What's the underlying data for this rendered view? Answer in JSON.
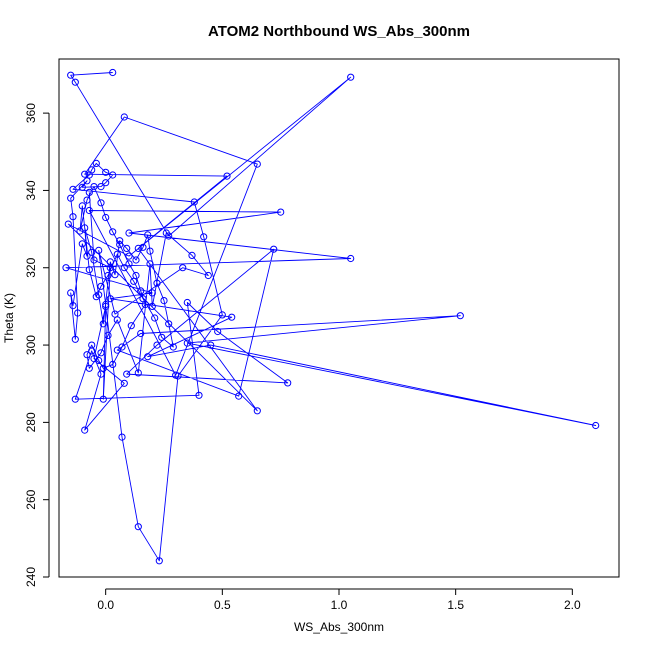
{
  "chart_data": {
    "type": "line",
    "title": "ATOM2 Northbound WS_Abs_300nm",
    "xlabel": "WS_Abs_300nm",
    "ylabel": "Theta (K)",
    "xlim": [
      -0.2,
      2.2
    ],
    "ylim": [
      240,
      374
    ],
    "x_ticks": [
      0.0,
      0.5,
      1.0,
      1.5,
      2.0
    ],
    "x_tick_labels": [
      "0.0",
      "0.5",
      "1.0",
      "1.5",
      "2.0"
    ],
    "y_ticks": [
      240,
      260,
      280,
      300,
      320,
      340,
      360
    ],
    "y_tick_labels": [
      "240",
      "260",
      "280",
      "300",
      "320",
      "340",
      "360"
    ],
    "grid": false,
    "legend": "none",
    "series": [
      {
        "color": "#0000ff",
        "marker": "open-circle",
        "points": [
          [
            0.03,
            370.5
          ],
          [
            -0.15,
            369.8
          ],
          [
            -0.13,
            368.0
          ],
          [
            0.27,
            328.2
          ],
          [
            1.05,
            369.3
          ],
          [
            0.1,
            323.0
          ],
          [
            -0.16,
            331.3
          ],
          [
            0.65,
            283.0
          ],
          [
            0.14,
            325.0
          ],
          [
            0.52,
            343.7
          ],
          [
            -0.09,
            344.2
          ],
          [
            0.08,
            359.0
          ],
          [
            0.65,
            346.8
          ],
          [
            0.3,
            292.2
          ],
          [
            -0.07,
            334.8
          ],
          [
            0.75,
            334.4
          ],
          [
            0.1,
            329.0
          ],
          [
            1.05,
            322.4
          ],
          [
            -0.17,
            320.0
          ],
          [
            0.2,
            313.5
          ],
          [
            0.02,
            312.0
          ],
          [
            0.54,
            307.2
          ],
          [
            0.18,
            297.0
          ],
          [
            0.45,
            300.0
          ],
          [
            2.1,
            279.2
          ],
          [
            0.35,
            300.5
          ],
          [
            1.52,
            307.6
          ],
          [
            0.15,
            303.0
          ],
          [
            0.05,
            298.7
          ],
          [
            0.57,
            286.8
          ],
          [
            0.72,
            324.8
          ],
          [
            0.22,
            300.0
          ],
          [
            0.09,
            292.5
          ],
          [
            0.78,
            290.2
          ],
          [
            0.48,
            303.5
          ],
          [
            0.35,
            311.0
          ],
          [
            0.4,
            287.0
          ],
          [
            -0.13,
            286.0
          ],
          [
            -0.06,
            298.5
          ],
          [
            -0.02,
            292.5
          ],
          [
            -0.09,
            278.0
          ],
          [
            0.08,
            290.1
          ],
          [
            -0.05,
            296.5
          ],
          [
            0.0,
            310.0
          ],
          [
            0.07,
            276.2
          ],
          [
            0.14,
            253.0
          ],
          [
            0.23,
            244.2
          ],
          [
            0.31,
            292.0
          ],
          [
            0.5,
            307.8
          ],
          [
            0.42,
            328.0
          ],
          [
            0.38,
            337.0
          ],
          [
            -0.14,
            340.3
          ],
          [
            -0.07,
            344.0
          ],
          [
            -0.06,
            345.3
          ],
          [
            -0.04,
            347.0
          ],
          [
            0.0,
            344.7
          ],
          [
            0.03,
            344.0
          ],
          [
            0.0,
            342.0
          ],
          [
            -0.02,
            341.0
          ],
          [
            -0.1,
            340.8
          ],
          [
            -0.08,
            342.5
          ],
          [
            -0.15,
            338.0
          ],
          [
            -0.14,
            333.2
          ],
          [
            -0.12,
            308.3
          ],
          [
            -0.13,
            301.5
          ],
          [
            -0.15,
            313.5
          ],
          [
            -0.14,
            310.2
          ],
          [
            -0.1,
            326.2
          ],
          [
            -0.08,
            323.0
          ],
          [
            -0.09,
            330.3
          ],
          [
            -0.06,
            324.0
          ],
          [
            -0.03,
            313.0
          ],
          [
            -0.01,
            305.5
          ],
          [
            0.02,
            321.5
          ],
          [
            0.04,
            318.2
          ],
          [
            0.06,
            327.0
          ],
          [
            0.09,
            325.0
          ],
          [
            0.13,
            322.0
          ],
          [
            0.16,
            325.3
          ],
          [
            0.18,
            328.5
          ],
          [
            0.19,
            324.3
          ],
          [
            0.22,
            316.0
          ],
          [
            0.25,
            311.5
          ],
          [
            0.27,
            305.5
          ],
          [
            0.29,
            299.5
          ],
          [
            0.24,
            302.0
          ],
          [
            0.21,
            307.0
          ],
          [
            0.16,
            312.0
          ],
          [
            0.12,
            316.5
          ],
          [
            0.08,
            320.0
          ],
          [
            0.05,
            323.5
          ],
          [
            0.01,
            318.0
          ],
          [
            -0.02,
            315.2
          ],
          [
            -0.04,
            312.5
          ],
          [
            -0.07,
            319.5
          ],
          [
            -0.1,
            336.0
          ],
          [
            -0.11,
            329.5
          ],
          [
            -0.08,
            337.5
          ],
          [
            -0.05,
            341.0
          ],
          [
            -0.02,
            336.8
          ],
          [
            0.0,
            333.0
          ],
          [
            0.03,
            329.3
          ],
          [
            0.06,
            326.0
          ],
          [
            0.1,
            321.0
          ],
          [
            0.13,
            318.0
          ],
          [
            0.15,
            314.0
          ],
          [
            0.17,
            310.5
          ],
          [
            0.11,
            305.0
          ],
          [
            0.07,
            299.5
          ],
          [
            0.03,
            295.0
          ],
          [
            -0.01,
            294.0
          ],
          [
            -0.03,
            296.0
          ],
          [
            -0.06,
            300.0
          ],
          [
            -0.08,
            297.5
          ],
          [
            -0.07,
            294.0
          ],
          [
            -0.02,
            298.0
          ],
          [
            0.01,
            302.5
          ],
          [
            0.05,
            306.5
          ],
          [
            0.14,
            292.8
          ],
          [
            0.19,
            321.0
          ],
          [
            0.2,
            310.0
          ],
          [
            0.26,
            329.0
          ],
          [
            0.37,
            323.2
          ],
          [
            0.44,
            318.0
          ],
          [
            0.33,
            320.0
          ],
          [
            0.04,
            308.0
          ],
          [
            -0.03,
            324.5
          ],
          [
            0.0,
            310.5
          ],
          [
            -0.01,
            286.0
          ],
          [
            0.02,
            320.0
          ],
          [
            -0.05,
            322.0
          ],
          [
            -0.07,
            339.5
          ]
        ]
      }
    ]
  }
}
